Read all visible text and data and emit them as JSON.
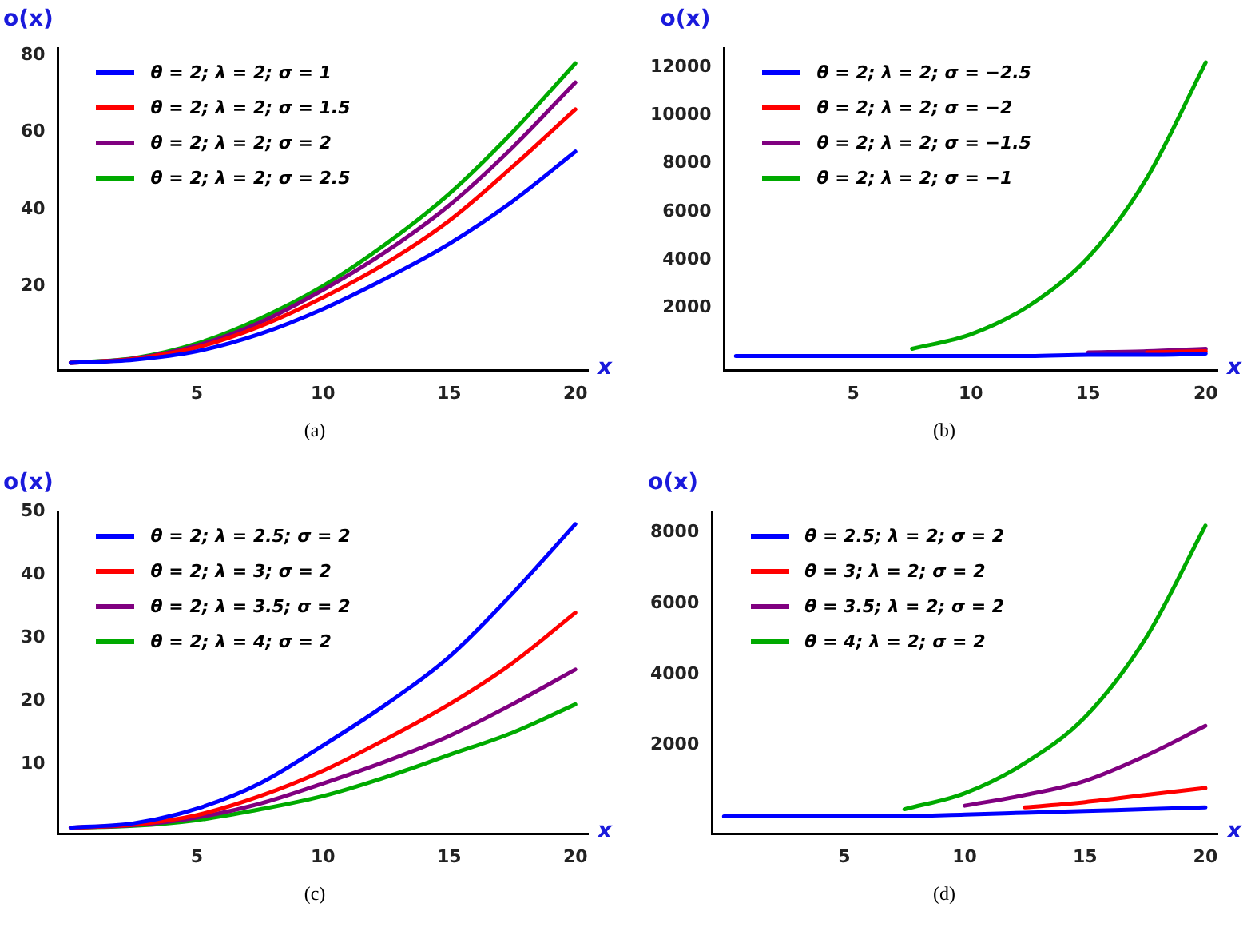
{
  "chart_data": [
    {
      "type": "line",
      "xlabel": "x",
      "ylabel": "o(x)",
      "annotations": [
        "(a)"
      ],
      "legend": "top left",
      "x": [
        0,
        2.5,
        5,
        7.5,
        10,
        12.5,
        15,
        17.5,
        20
      ],
      "xlim": [
        -0.5,
        20.5
      ],
      "xticks": [
        5,
        10,
        15,
        20
      ],
      "ylim": [
        -2,
        82
      ],
      "yticks": [
        20,
        40,
        60,
        80
      ],
      "series": [
        {
          "name": "θ = 2; λ = 2; σ = 1",
          "color": "#0000ff",
          "values": [
            0,
            0.8,
            3,
            7.5,
            14,
            22,
            31,
            42,
            55
          ]
        },
        {
          "name": "θ = 2; λ = 2; σ = 1.5",
          "color": "#ff0000",
          "values": [
            0,
            1,
            4,
            9.5,
            17,
            26,
            37,
            51,
            66
          ]
        },
        {
          "name": "θ = 2; λ = 2; σ = 2",
          "color": "#800080",
          "values": [
            0,
            1.1,
            4.5,
            10.5,
            19,
            29,
            41,
            56,
            73
          ]
        },
        {
          "name": "θ = 2; λ = 2; σ = 2.5",
          "color": "#00aa00",
          "values": [
            0,
            1.2,
            5,
            11.5,
            20,
            31,
            44,
            60,
            78
          ]
        }
      ]
    },
    {
      "type": "line",
      "xlabel": "x",
      "ylabel": "o(x)",
      "annotations": [
        "(b)"
      ],
      "legend": "top left",
      "x": [
        0,
        2.5,
        5,
        7.5,
        10,
        12.5,
        15,
        17.5,
        20
      ],
      "xlim": [
        -0.5,
        20.5
      ],
      "xticks": [
        5,
        10,
        15,
        20
      ],
      "ylim": [
        -600,
        12800
      ],
      "yticks": [
        2000,
        4000,
        6000,
        8000,
        10000,
        12000
      ],
      "series": [
        {
          "name": "θ = 2; λ = 2; σ = −2.5",
          "color": "#0000ff",
          "values": [
            0,
            0,
            0,
            0,
            0,
            0,
            50,
            50,
            100
          ]
        },
        {
          "name": "θ = 2; λ = 2; σ = −2",
          "color": "#ff0000",
          "values": [
            null,
            null,
            null,
            null,
            null,
            null,
            null,
            150,
            200
          ]
        },
        {
          "name": "θ = 2; λ = 2; σ = −1.5",
          "color": "#800080",
          "values": [
            null,
            null,
            null,
            null,
            null,
            null,
            150,
            200,
            300
          ]
        },
        {
          "name": "θ = 2; λ = 2; σ = −1",
          "color": "#00aa00",
          "values": [
            null,
            null,
            null,
            300,
            900,
            2100,
            4100,
            7400,
            12200
          ]
        }
      ]
    },
    {
      "type": "line",
      "xlabel": "x",
      "ylabel": "o(x)",
      "annotations": [
        "(c)"
      ],
      "legend": "top left",
      "x": [
        0,
        2.5,
        5,
        7.5,
        10,
        12.5,
        15,
        17.5,
        20
      ],
      "xlim": [
        -0.5,
        20.5
      ],
      "xticks": [
        5,
        10,
        15,
        20
      ],
      "ylim": [
        -1,
        50
      ],
      "yticks": [
        10,
        20,
        30,
        40,
        50
      ],
      "series": [
        {
          "name": "θ = 2; λ = 2.5; σ = 2",
          "color": "#0000ff",
          "values": [
            0,
            0.7,
            3,
            7,
            13,
            19.5,
            27,
            37,
            48
          ]
        },
        {
          "name": "θ = 2; λ = 3; σ = 2",
          "color": "#ff0000",
          "values": [
            0,
            0.5,
            2,
            5,
            9,
            14,
            19.5,
            26,
            34
          ]
        },
        {
          "name": "θ = 2; λ = 3.5; σ = 2",
          "color": "#800080",
          "values": [
            0,
            0.4,
            1.6,
            3.8,
            7,
            10.5,
            14.5,
            19.5,
            25
          ]
        },
        {
          "name": "θ = 2; λ = 4; σ = 2",
          "color": "#00aa00",
          "values": [
            0,
            0.3,
            1.2,
            2.9,
            5,
            8,
            11.5,
            15,
            19.5
          ]
        }
      ]
    },
    {
      "type": "line",
      "xlabel": "x",
      "ylabel": "o(x)",
      "annotations": [
        "(d)"
      ],
      "legend": "top left",
      "x": [
        0,
        2.5,
        5,
        7.5,
        10,
        12.5,
        15,
        17.5,
        20
      ],
      "xlim": [
        -0.5,
        20.5
      ],
      "xticks": [
        5,
        10,
        15,
        20
      ],
      "ylim": [
        -500,
        8600
      ],
      "yticks": [
        2000,
        4000,
        6000,
        8000
      ],
      "series": [
        {
          "name": "θ = 2.5; λ = 2; σ = 2",
          "color": "#0000ff",
          "values": [
            0,
            0,
            0,
            0,
            50,
            100,
            150,
            200,
            250
          ]
        },
        {
          "name": "θ = 3; λ = 2; σ = 2",
          "color": "#ff0000",
          "values": [
            null,
            null,
            null,
            null,
            null,
            250,
            400,
            600,
            800
          ]
        },
        {
          "name": "θ = 3.5; λ = 2; σ = 2",
          "color": "#800080",
          "values": [
            null,
            null,
            null,
            null,
            300,
            600,
            1000,
            1700,
            2550
          ]
        },
        {
          "name": "θ = 4; λ = 2; σ = 2",
          "color": "#00aa00",
          "values": [
            null,
            null,
            null,
            200,
            650,
            1500,
            2800,
            5000,
            8200
          ]
        }
      ]
    }
  ]
}
